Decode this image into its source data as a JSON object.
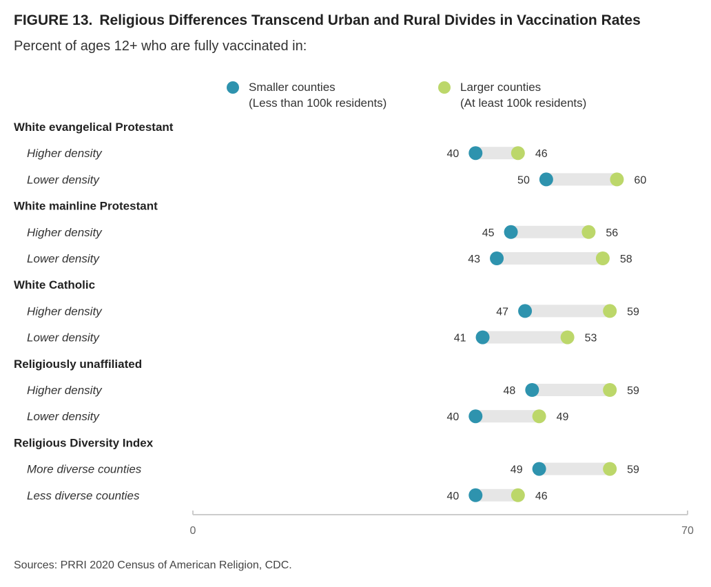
{
  "title_prefix": "FIGURE 13.",
  "title": "Religious Differences Transcend Urban and Rural Divides in Vaccination Rates",
  "subtitle": "Percent of ages 12+ who are fully vaccinated in:",
  "source": "Sources: PRRI 2020 Census of American Religion, CDC.",
  "colors": {
    "smaller": "#2E93AE",
    "larger": "#BCD76A",
    "connector": "#E6E6E6",
    "axis": "#CCCCCC"
  },
  "chart_data": {
    "type": "dumbbell",
    "xlim": [
      0,
      70
    ],
    "x_ticks": [
      "0",
      "70"
    ],
    "legend": [
      {
        "key": "smaller",
        "line1": "Smaller counties",
        "line2": "(Less than 100k residents)"
      },
      {
        "key": "larger",
        "line1": "Larger counties",
        "line2": "(At least 100k residents)"
      }
    ],
    "groups": [
      {
        "label": "White evangelical Protestant",
        "rows": [
          {
            "label": "Higher density",
            "smaller": 40,
            "larger": 46
          },
          {
            "label": "Lower density",
            "smaller": 50,
            "larger": 60
          }
        ]
      },
      {
        "label": "White mainline Protestant",
        "rows": [
          {
            "label": "Higher density",
            "smaller": 45,
            "larger": 56
          },
          {
            "label": "Lower density",
            "smaller": 43,
            "larger": 58
          }
        ]
      },
      {
        "label": "White Catholic",
        "rows": [
          {
            "label": "Higher density",
            "smaller": 47,
            "larger": 59
          },
          {
            "label": "Lower density",
            "smaller": 41,
            "larger": 53
          }
        ]
      },
      {
        "label": "Religiously unaffiliated",
        "rows": [
          {
            "label": "Higher density",
            "smaller": 48,
            "larger": 59
          },
          {
            "label": "Lower density",
            "smaller": 40,
            "larger": 49
          }
        ]
      },
      {
        "label": "Religious Diversity Index",
        "rows": [
          {
            "label": "More diverse counties",
            "smaller": 49,
            "larger": 59
          },
          {
            "label": "Less diverse counties",
            "smaller": 40,
            "larger": 46
          }
        ]
      }
    ]
  }
}
